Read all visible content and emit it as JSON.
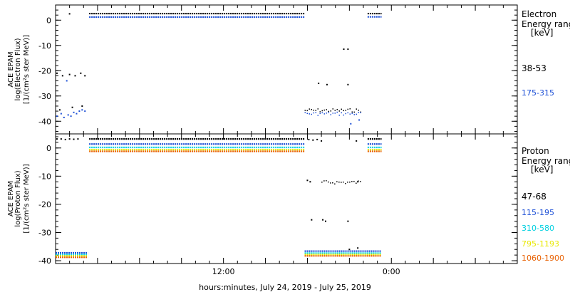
{
  "figure": {
    "xlabel": "hours:minutes, July 24, 2019 - July 25, 2019",
    "x_ticks": [
      {
        "x": 12,
        "label": "12:00"
      },
      {
        "x": 24,
        "label": "0:00"
      }
    ],
    "x_range": [
      0,
      33
    ]
  },
  "chart_data": [
    {
      "type": "scatter",
      "panel": "electron",
      "ylabel_lines": [
        "ACE EPAM",
        "log(Electron Flux)",
        "[1/(cm²s ster MeV)]"
      ],
      "legend_title_lines": [
        "Electron",
        "Energy range",
        "[keV]"
      ],
      "ylim": [
        -45,
        6
      ],
      "y_ticks": [
        0,
        -10,
        -20,
        -30,
        -40
      ],
      "grid": false,
      "series": [
        {
          "name": "38-53",
          "color": "#000000",
          "segments": [
            {
              "x0": 2.4,
              "x1": 17.8,
              "y": 2.6
            },
            {
              "x0": 22.3,
              "x1": 23.3,
              "y": 2.6
            }
          ],
          "points": [
            {
              "x": 0.1,
              "y": -21
            },
            {
              "x": 0.5,
              "y": -22
            },
            {
              "x": 1.0,
              "y": -21.5
            },
            {
              "x": 1.4,
              "y": -22
            },
            {
              "x": 1.8,
              "y": -21
            },
            {
              "x": 2.1,
              "y": -22
            },
            {
              "x": 0.3,
              "y": -35.5
            },
            {
              "x": 1.2,
              "y": -34.5
            },
            {
              "x": 1.9,
              "y": -34
            },
            {
              "x": 1.0,
              "y": 2.5
            },
            {
              "x": 18.8,
              "y": -25
            },
            {
              "x": 19.4,
              "y": -25.5
            },
            {
              "x": 20.6,
              "y": -11.5
            },
            {
              "x": 20.9,
              "y": -11.5
            },
            {
              "x": 20.9,
              "y": -25.5
            }
          ],
          "band": {
            "x0": 17.8,
            "x1": 21.8,
            "y": -35.5
          }
        },
        {
          "name": "175-315",
          "color": "#1c4fd6",
          "segments": [
            {
              "x0": 2.4,
              "x1": 17.8,
              "y": 1.2
            },
            {
              "x0": 22.3,
              "x1": 23.3,
              "y": 1.3
            }
          ],
          "points": [
            {
              "x": 0.1,
              "y": -38
            },
            {
              "x": 0.4,
              "y": -37
            },
            {
              "x": 0.6,
              "y": -38.5
            },
            {
              "x": 0.9,
              "y": -37.5
            },
            {
              "x": 1.1,
              "y": -38
            },
            {
              "x": 1.3,
              "y": -36.5
            },
            {
              "x": 1.5,
              "y": -37
            },
            {
              "x": 1.7,
              "y": -36
            },
            {
              "x": 1.9,
              "y": -35.5
            },
            {
              "x": 2.1,
              "y": -36
            },
            {
              "x": 0.8,
              "y": -24
            },
            {
              "x": 21.1,
              "y": -41
            },
            {
              "x": 21.7,
              "y": -39.5
            }
          ],
          "band": {
            "x0": 17.8,
            "x1": 21.8,
            "y": -36.8
          }
        }
      ]
    },
    {
      "type": "scatter",
      "panel": "proton",
      "ylabel_lines": [
        "ACE EPAM",
        "log(Proton Flux)",
        "[1/(cm²s ster MeV)]"
      ],
      "legend_title_lines": [
        "Proton",
        "Energy range",
        "[keV]"
      ],
      "ylim": [
        -41,
        5
      ],
      "y_ticks": [
        0,
        -10,
        -20,
        -30,
        -40
      ],
      "grid": false,
      "series": [
        {
          "name": "47-68",
          "color": "#000000",
          "segments": [
            {
              "x0": 2.4,
              "x1": 17.8,
              "y": 3.2
            },
            {
              "x0": 22.3,
              "x1": 23.3,
              "y": 3.2
            }
          ],
          "points": [
            {
              "x": 0.1,
              "y": 3.2
            },
            {
              "x": 0.4,
              "y": 3.2
            },
            {
              "x": 0.7,
              "y": 3.0
            },
            {
              "x": 1.0,
              "y": 3.2
            },
            {
              "x": 1.3,
              "y": 3.1
            },
            {
              "x": 1.6,
              "y": 3.2
            },
            {
              "x": 18.1,
              "y": 3.0
            },
            {
              "x": 18.4,
              "y": 2.8
            },
            {
              "x": 18.7,
              "y": 3.0
            },
            {
              "x": 19.0,
              "y": 2.5
            },
            {
              "x": 21.5,
              "y": 2.5
            },
            {
              "x": 18.0,
              "y": -11.5
            },
            {
              "x": 18.2,
              "y": -12
            },
            {
              "x": 21.6,
              "y": -12
            },
            {
              "x": 18.3,
              "y": -25.5
            },
            {
              "x": 19.1,
              "y": -25.5
            },
            {
              "x": 19.3,
              "y": -26
            },
            {
              "x": 20.9,
              "y": -26
            },
            {
              "x": 21.0,
              "y": -36
            },
            {
              "x": 21.6,
              "y": -35.5
            }
          ],
          "band": {
            "x0": 19.0,
            "x1": 21.9,
            "y": -12
          }
        },
        {
          "name": "115-195",
          "color": "#1c4fd6",
          "segments": [
            {
              "x0": 2.4,
              "x1": 17.8,
              "y": 1.4
            },
            {
              "x0": 22.3,
              "x1": 23.3,
              "y": 1.4
            },
            {
              "x0": 0,
              "x1": 2.3,
              "y": -37.2
            },
            {
              "x0": 17.8,
              "x1": 23.3,
              "y": -36.6
            }
          ]
        },
        {
          "name": "310-580",
          "color": "#00d0e0",
          "segments": [
            {
              "x0": 2.4,
              "x1": 17.8,
              "y": 0.2
            },
            {
              "x0": 22.3,
              "x1": 23.3,
              "y": 0.2
            },
            {
              "x0": 0,
              "x1": 2.3,
              "y": -37.8
            },
            {
              "x0": 17.8,
              "x1": 23.3,
              "y": -37.3
            }
          ]
        },
        {
          "name": "795-1193",
          "color": "#e8e800",
          "segments": [
            {
              "x0": 2.4,
              "x1": 17.8,
              "y": -0.6
            },
            {
              "x0": 22.3,
              "x1": 23.3,
              "y": -0.6
            },
            {
              "x0": 0,
              "x1": 2.3,
              "y": -38.3
            },
            {
              "x0": 17.8,
              "x1": 23.3,
              "y": -37.8
            }
          ]
        },
        {
          "name": "1060-1900",
          "color": "#e86000",
          "segments": [
            {
              "x0": 2.4,
              "x1": 17.8,
              "y": -1.2
            },
            {
              "x0": 22.3,
              "x1": 23.3,
              "y": -1.2
            },
            {
              "x0": 0,
              "x1": 2.3,
              "y": -38.8
            },
            {
              "x0": 17.8,
              "x1": 23.3,
              "y": -38.3
            }
          ]
        }
      ]
    }
  ]
}
